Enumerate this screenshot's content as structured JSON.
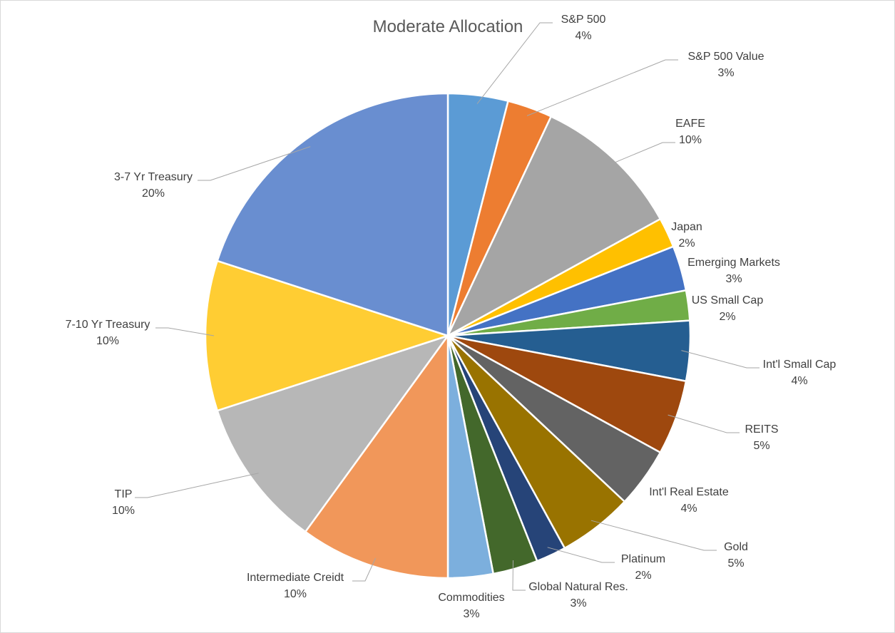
{
  "chart_data": {
    "type": "pie",
    "title": "Moderate Allocation",
    "slices": [
      {
        "name": "S&P 500",
        "value": 4,
        "label": "4%",
        "color": "#5b9bd5"
      },
      {
        "name": "S&P 500 Value",
        "value": 3,
        "label": "3%",
        "color": "#ed7d31"
      },
      {
        "name": "EAFE",
        "value": 10,
        "label": "10%",
        "color": "#a5a5a5"
      },
      {
        "name": "Japan",
        "value": 2,
        "label": "2%",
        "color": "#ffc000"
      },
      {
        "name": "Emerging Markets",
        "value": 3,
        "label": "3%",
        "color": "#4472c4"
      },
      {
        "name": "US Small Cap",
        "value": 2,
        "label": "2%",
        "color": "#70ad47"
      },
      {
        "name": "Int'l Small Cap",
        "value": 4,
        "label": "4%",
        "color": "#255e91"
      },
      {
        "name": "REITS",
        "value": 5,
        "label": "5%",
        "color": "#9e480e"
      },
      {
        "name": "Int'l Real Estate",
        "value": 4,
        "label": "4%",
        "color": "#636363"
      },
      {
        "name": "Gold",
        "value": 5,
        "label": "5%",
        "color": "#997300"
      },
      {
        "name": "Platinum",
        "value": 2,
        "label": "2%",
        "color": "#264478"
      },
      {
        "name": "Global Natural Res.",
        "value": 3,
        "label": "3%",
        "color": "#43682b"
      },
      {
        "name": "Commodities",
        "value": 3,
        "label": "3%",
        "color": "#7cafdd"
      },
      {
        "name": "Intermediate Creidt",
        "value": 10,
        "label": "10%",
        "color": "#f1975a"
      },
      {
        "name": "TIP",
        "value": 10,
        "label": "10%",
        "color": "#b7b7b7"
      },
      {
        "name": "7-10 Yr Treasury",
        "value": 10,
        "label": "10%",
        "color": "#ffcd33"
      },
      {
        "name": "3-7 Yr Treasury",
        "value": 20,
        "label": "20%",
        "color": "#698ed0"
      }
    ]
  }
}
